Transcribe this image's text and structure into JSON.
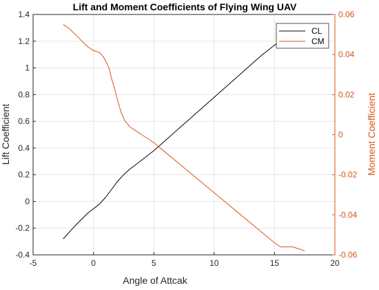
{
  "chart_data": {
    "type": "line",
    "title": "Lift and Moment Coefficients of Flying Wing UAV",
    "xlabel": "Angle of Attcak",
    "ylabel_left": "Lift Coefficient",
    "ylabel_right": "Moment Coefficient",
    "xlim": [
      -5,
      20
    ],
    "ylim_left": [
      -0.4,
      1.4
    ],
    "ylim_right": [
      -0.06,
      0.06
    ],
    "x_ticks": [
      "-5",
      "0",
      "5",
      "10",
      "15",
      "20"
    ],
    "y_ticks_left": [
      "-0.4",
      "-0.2",
      "0",
      "0.2",
      "0.4",
      "0.6",
      "0.8",
      "1",
      "1.2",
      "1.4"
    ],
    "y_ticks_right": [
      "-0.06",
      "-0.04",
      "-0.02",
      "0",
      "0.02",
      "0.04",
      "0.06"
    ],
    "grid": true,
    "legend_position": "top-right",
    "colors": {
      "CL": "#000000",
      "CM": "#d95319"
    },
    "series": [
      {
        "name": "CL",
        "axis": "left",
        "x": [
          -2.5,
          -1.5,
          -0.5,
          0.5,
          1.0,
          1.5,
          2.0,
          2.5,
          3.0,
          4.0,
          5.0,
          6.0,
          7.0,
          8.0,
          9.0,
          10.0,
          11.0,
          12.0,
          13.0,
          14.0,
          15.0,
          15.5,
          16.0,
          16.5,
          17.5
        ],
        "y": [
          -0.28,
          -0.18,
          -0.09,
          -0.02,
          0.03,
          0.09,
          0.15,
          0.2,
          0.24,
          0.31,
          0.38,
          0.46,
          0.54,
          0.62,
          0.7,
          0.78,
          0.86,
          0.94,
          1.02,
          1.1,
          1.17,
          1.2,
          1.23,
          1.24,
          1.25
        ]
      },
      {
        "name": "CM",
        "axis": "right",
        "x": [
          -2.5,
          -2.0,
          -1.5,
          -1.0,
          -0.5,
          0.0,
          0.5,
          0.8,
          1.0,
          1.3,
          1.5,
          1.8,
          2.0,
          2.3,
          2.6,
          3.0,
          3.5,
          4.0,
          5.0,
          6.0,
          7.0,
          8.0,
          9.0,
          10.0,
          11.0,
          12.0,
          13.0,
          14.0,
          15.0,
          15.5,
          16.0,
          16.5,
          17.0,
          17.5
        ],
        "y": [
          0.055,
          0.053,
          0.05,
          0.047,
          0.044,
          0.042,
          0.041,
          0.039,
          0.037,
          0.033,
          0.028,
          0.022,
          0.017,
          0.011,
          0.007,
          0.004,
          0.002,
          0.0,
          -0.004,
          -0.009,
          -0.014,
          -0.019,
          -0.024,
          -0.029,
          -0.034,
          -0.039,
          -0.044,
          -0.049,
          -0.054,
          -0.056,
          -0.056,
          -0.056,
          -0.057,
          -0.058
        ]
      }
    ]
  }
}
